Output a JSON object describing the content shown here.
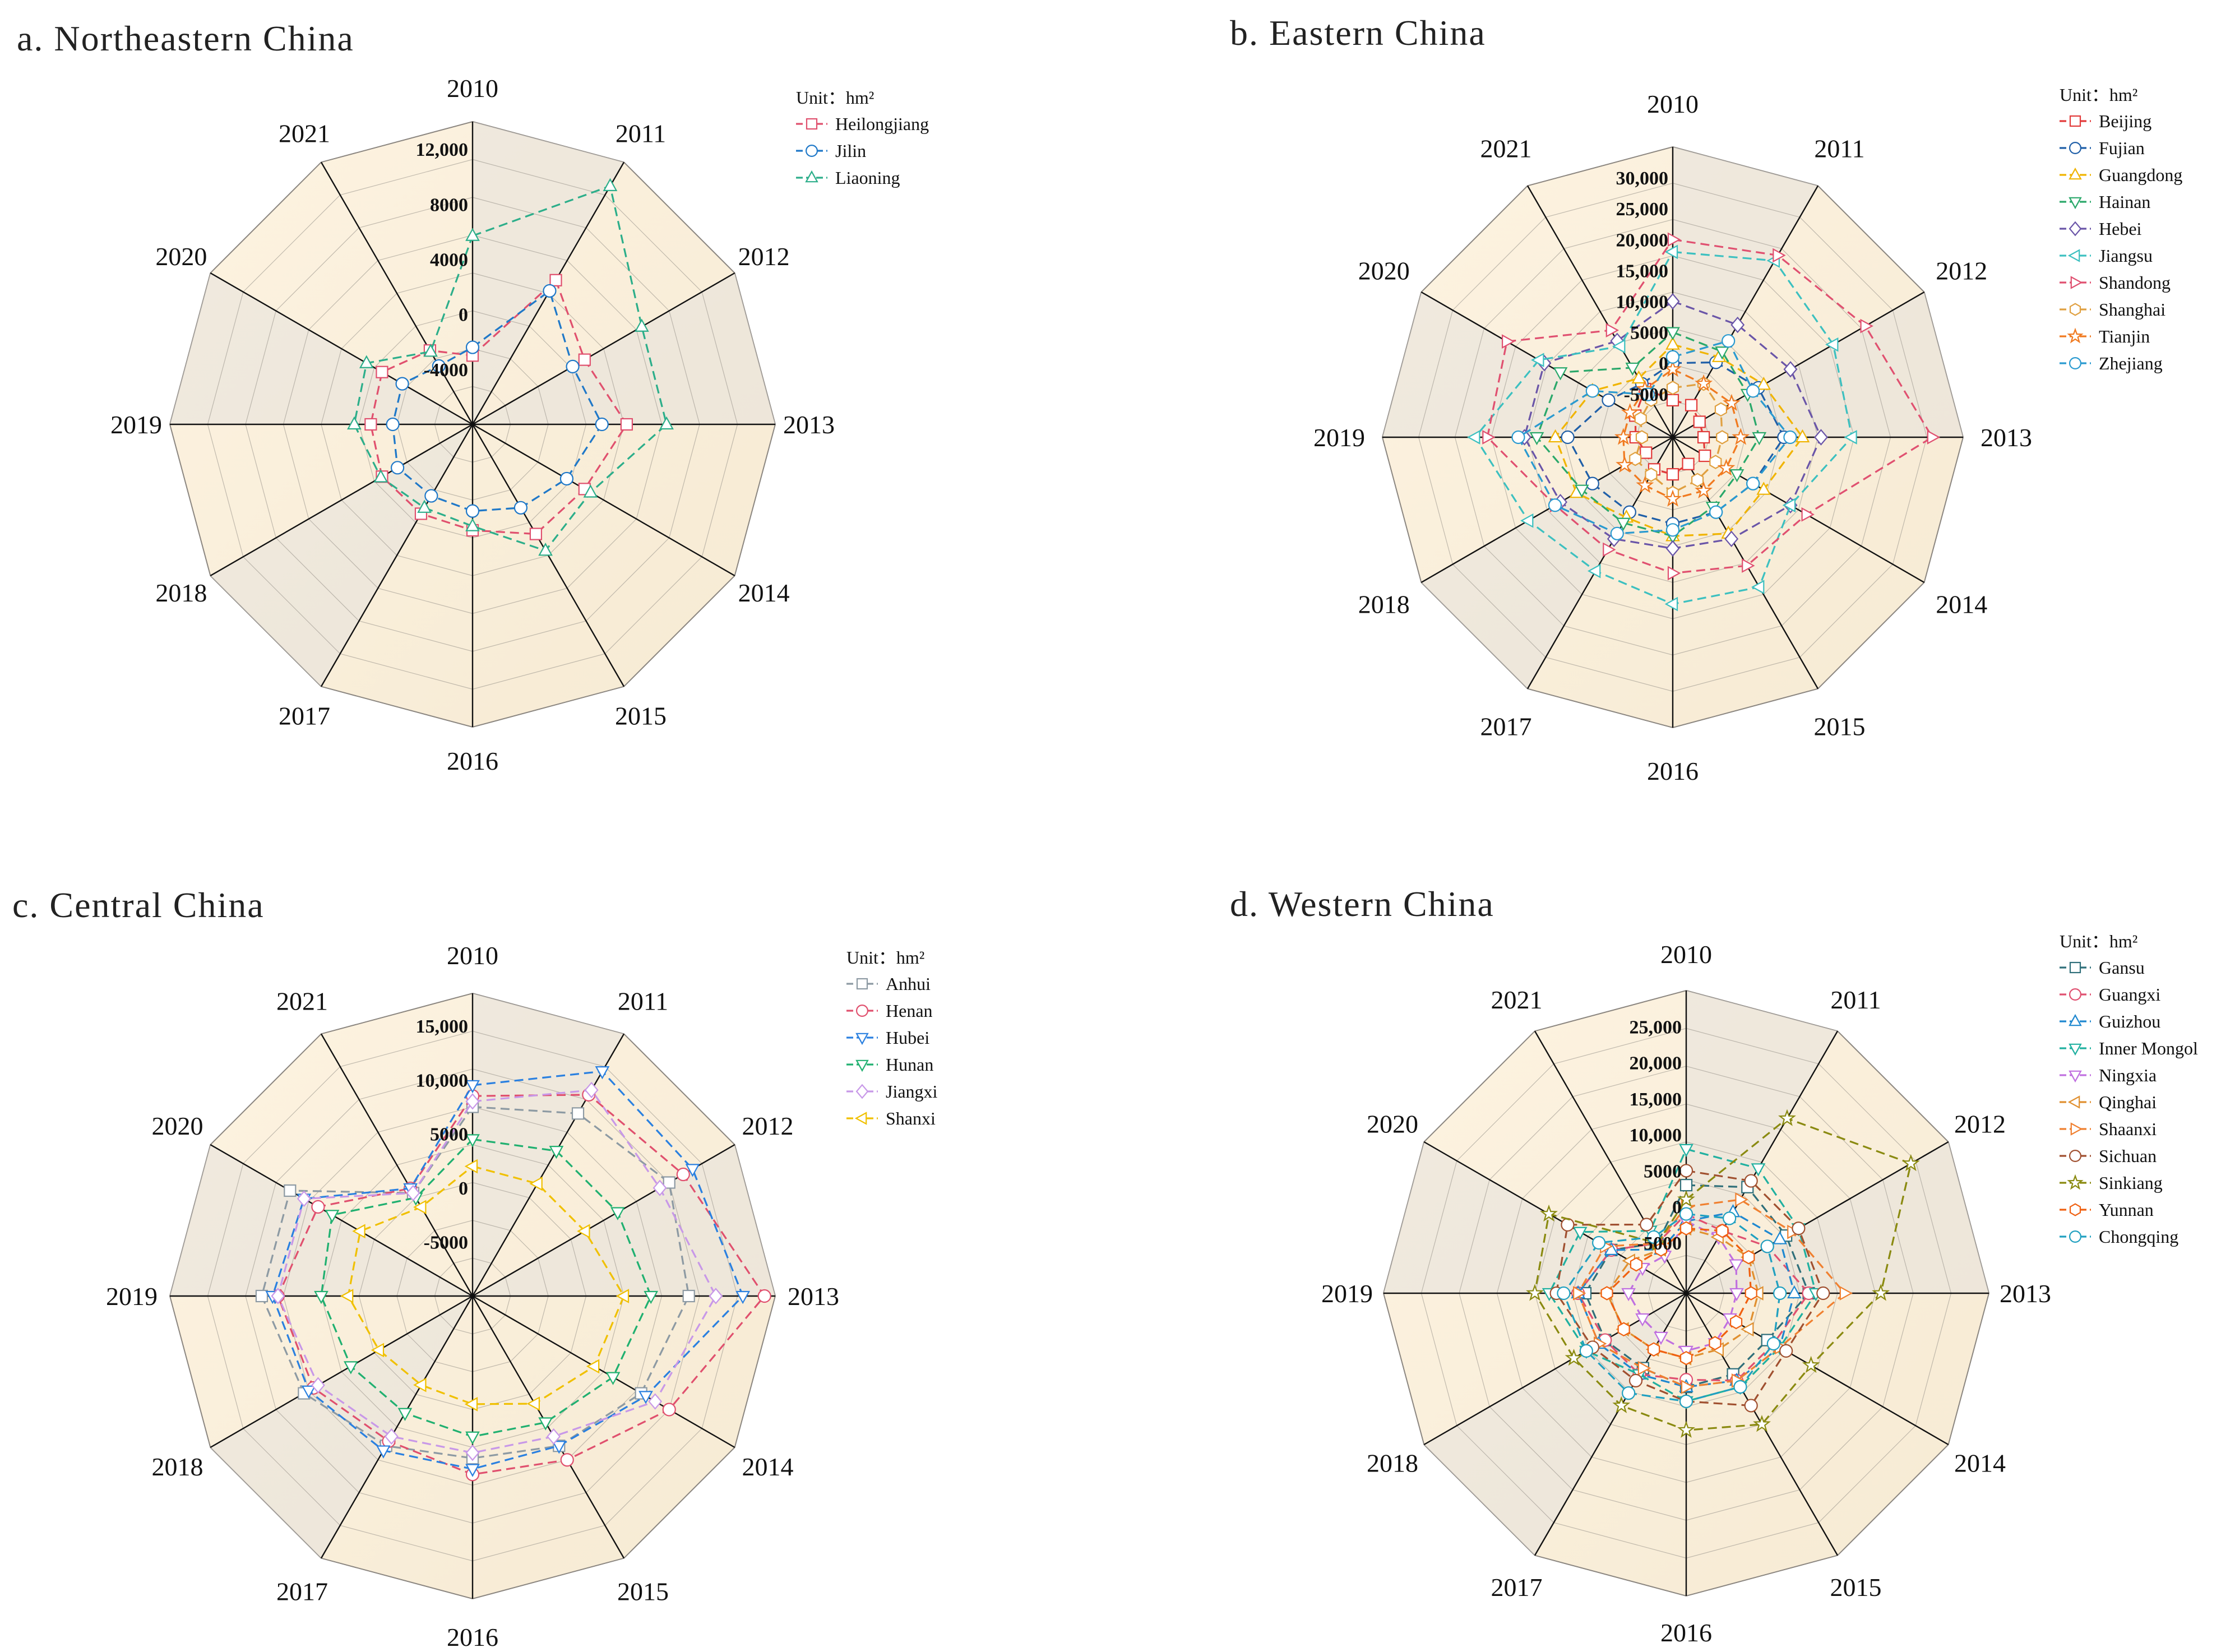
{
  "colors": {
    "background_light": "#fdf3e1",
    "background_shade": "#e6e2dc",
    "grid": "#9a958c",
    "axis": "#111111"
  },
  "chart_data": [
    {
      "type": "radar",
      "title": "a. Northeastern China",
      "unit": "Unit：hm²",
      "categories": [
        "2010",
        "2011",
        "2012",
        "2013",
        "2014",
        "2015",
        "2016",
        "2017",
        "2018",
        "2019",
        "2020",
        "2021"
      ],
      "rmin": -8000,
      "rmax": 14000,
      "ticks": [
        -4000,
        0,
        4000,
        8000,
        12000
      ],
      "tick_labels": [
        "-4000",
        "0",
        "4000",
        "8000",
        "12,000"
      ],
      "series": [
        {
          "name": "Heilongjiang",
          "color": "#e0506e",
          "marker": "square",
          "values": [
            -3000,
            4100,
            1400,
            3200,
            1400,
            1200,
            -300,
            -500,
            -400,
            -600,
            -400,
            -1800
          ]
        },
        {
          "name": "Jilin",
          "color": "#1f78c8",
          "marker": "circle",
          "values": [
            -2400,
            3200,
            400,
            1400,
            -100,
            -1000,
            -1700,
            -2000,
            -1700,
            -2200,
            -2100,
            -3100
          ]
        },
        {
          "name": "Liaoning",
          "color": "#2cae8a",
          "marker": "triangle",
          "values": [
            5700,
            12000,
            6200,
            6100,
            1900,
            2600,
            -600,
            -1000,
            -300,
            600,
            900,
            -1900
          ]
        }
      ]
    },
    {
      "type": "radar",
      "title": "b. Eastern China",
      "unit": "Unit：hm²",
      "categories": [
        "2010",
        "2011",
        "2012",
        "2013",
        "2014",
        "2015",
        "2016",
        "2017",
        "2018",
        "2019",
        "2020",
        "2021"
      ],
      "rmin": -12000,
      "rmax": 35000,
      "ticks": [
        -5000,
        0,
        5000,
        10000,
        15000,
        20000,
        25000,
        30000
      ],
      "tick_labels": [
        "-5000",
        "0",
        "5000",
        "10,000",
        "15,000",
        "20,000",
        "25,000",
        "30,000"
      ],
      "series": [
        {
          "name": "Beijing",
          "color": "#e23b3b",
          "marker": "square",
          "values": [
            -6000,
            -6000,
            -7000,
            -7000,
            -6000,
            -7000,
            -6000,
            -6000,
            -7000,
            -6000,
            -5000,
            -3000
          ]
        },
        {
          "name": "Fujian",
          "color": "#1f5fa8",
          "marker": "circle",
          "values": [
            0,
            2000,
            4000,
            6000,
            3000,
            2000,
            2000,
            2000,
            3000,
            5000,
            0,
            -2000
          ]
        },
        {
          "name": "Guangdong",
          "color": "#f0b400",
          "marker": "triangle",
          "values": [
            3000,
            3000,
            5000,
            9000,
            5000,
            6000,
            4000,
            3000,
            6000,
            7000,
            3000,
            -1000
          ]
        },
        {
          "name": "Hainan",
          "color": "#2aa86a",
          "marker": "tri-down",
          "values": [
            5000,
            4000,
            2000,
            2000,
            0,
            1000,
            4000,
            4000,
            5000,
            10000,
            9000,
            1000
          ]
        },
        {
          "name": "Hebei",
          "color": "#6a55a8",
          "marker": "diamond",
          "values": [
            10000,
            9000,
            10000,
            12000,
            10000,
            7000,
            6000,
            7000,
            9000,
            12000,
            12000,
            6000
          ]
        },
        {
          "name": "Jiangsu",
          "color": "#3cc0c0",
          "marker": "tri-left",
          "values": [
            18000,
            21000,
            18000,
            17000,
            10000,
            16000,
            15000,
            13000,
            15000,
            20000,
            13000,
            5000
          ]
        },
        {
          "name": "Shandong",
          "color": "#e05070",
          "marker": "tri-right",
          "values": [
            20000,
            22000,
            24000,
            30000,
            13000,
            12000,
            10000,
            9000,
            10000,
            18000,
            19000,
            8000
          ]
        },
        {
          "name": "Shanghai",
          "color": "#e0a040",
          "marker": "hexagon",
          "values": [
            -4000,
            -2000,
            -3000,
            -4000,
            -4000,
            -4000,
            -3000,
            -5000,
            -5000,
            -7000,
            -6000,
            -5000
          ]
        },
        {
          "name": "Tianjin",
          "color": "#f07a20",
          "marker": "star",
          "values": [
            -1000,
            -2000,
            -1000,
            -1000,
            -2000,
            -2000,
            -2000,
            -3000,
            -3000,
            -4000,
            -4000,
            -3000
          ]
        },
        {
          "name": "Zhejiang",
          "color": "#2a9ad0",
          "marker": "circle-small",
          "values": [
            1000,
            6000,
            3000,
            7000,
            3000,
            2000,
            3000,
            6000,
            10000,
            13000,
            3000,
            -4000
          ]
        }
      ]
    },
    {
      "type": "radar",
      "title": "c. Central China",
      "unit": "Unit：hm²",
      "categories": [
        "2010",
        "2011",
        "2012",
        "2013",
        "2014",
        "2015",
        "2016",
        "2017",
        "2018",
        "2019",
        "2020",
        "2021"
      ],
      "rmin": -10000,
      "rmax": 18000,
      "ticks": [
        -5000,
        0,
        5000,
        10000,
        15000
      ],
      "tick_labels": [
        "-5000",
        "0",
        "5000",
        "10,000",
        "15,000"
      ],
      "series": [
        {
          "name": "Anhui",
          "color": "#8d9aa3",
          "marker": "square",
          "values": [
            7500,
            9500,
            11000,
            10000,
            8000,
            6000,
            5000,
            6000,
            8000,
            9500,
            9500,
            1000
          ]
        },
        {
          "name": "Henan",
          "color": "#e0506e",
          "marker": "circle",
          "values": [
            8500,
            11500,
            12500,
            17000,
            11000,
            7500,
            6500,
            5500,
            7000,
            8000,
            6500,
            1500
          ]
        },
        {
          "name": "Hubei",
          "color": "#2a80e0",
          "marker": "tri-down",
          "values": [
            9500,
            14000,
            13500,
            15000,
            8500,
            6000,
            6000,
            6500,
            7500,
            8500,
            8000,
            1500
          ]
        },
        {
          "name": "Hunan",
          "color": "#20b070",
          "marker": "tri-down-open",
          "values": [
            4500,
            5500,
            5500,
            6500,
            5000,
            3500,
            3000,
            2500,
            3000,
            4000,
            5000,
            500
          ]
        },
        {
          "name": "Jiangxi",
          "color": "#c898e8",
          "marker": "diamond",
          "values": [
            8000,
            12000,
            10000,
            12500,
            9500,
            5000,
            4500,
            5000,
            6500,
            8000,
            8000,
            1000
          ]
        },
        {
          "name": "Shanxi",
          "color": "#f0c000",
          "marker": "tri-left",
          "values": [
            2000,
            2000,
            2000,
            4000,
            3000,
            1500,
            0,
            -500,
            0,
            1500,
            2000,
            -500
          ]
        }
      ]
    },
    {
      "type": "radar",
      "title": "d. Western China",
      "unit": "Unit：hm²",
      "categories": [
        "2010",
        "2011",
        "2012",
        "2013",
        "2014",
        "2015",
        "2016",
        "2017",
        "2018",
        "2019",
        "2020",
        "2021"
      ],
      "rmin": -12000,
      "rmax": 30000,
      "ticks": [
        -5000,
        0,
        5000,
        10000,
        15000,
        20000,
        25000
      ],
      "tick_labels": [
        "-5000",
        "0",
        "5000",
        "10,000",
        "15,000",
        "20,000",
        "25,000"
      ],
      "series": [
        {
          "name": "Gansu",
          "color": "#2f6f7a",
          "marker": "square",
          "values": [
            3000,
            5000,
            4000,
            5000,
            1000,
            1000,
            1000,
            0,
            1000,
            2000,
            0,
            -4000
          ]
        },
        {
          "name": "Guangxi",
          "color": "#e05070",
          "marker": "circle",
          "values": [
            -1000,
            -2000,
            1000,
            5000,
            2000,
            2000,
            0,
            1000,
            1000,
            3000,
            0,
            -4000
          ]
        },
        {
          "name": "Guizhou",
          "color": "#1f88d0",
          "marker": "triangle",
          "values": [
            -2000,
            1000,
            3000,
            3000,
            3000,
            2000,
            1000,
            1000,
            2000,
            3000,
            0,
            -5000
          ]
        },
        {
          "name": "Inner Mongol",
          "color": "#20b0a0",
          "marker": "tri-down",
          "values": [
            8000,
            8000,
            6000,
            6000,
            3000,
            3000,
            3000,
            1000,
            4000,
            7000,
            5000,
            -2000
          ]
        },
        {
          "name": "Ningxia",
          "color": "#c070e0",
          "marker": "tri-down",
          "values": [
            -2000,
            -3000,
            -4000,
            -5000,
            -5000,
            -4000,
            -4000,
            -5000,
            -5000,
            -4000,
            -5000,
            -6000
          ]
        },
        {
          "name": "Qinghai",
          "color": "#e09030",
          "marker": "tri-left",
          "values": [
            -3000,
            -3000,
            -2000,
            -2000,
            -2000,
            -3000,
            -3000,
            -3000,
            -2000,
            -1000,
            -3000,
            -5000
          ]
        },
        {
          "name": "Shaanxi",
          "color": "#f08030",
          "marker": "tri-right",
          "values": [
            0,
            3000,
            5000,
            10000,
            3000,
            2000,
            1000,
            0,
            2000,
            3000,
            1000,
            -4000
          ]
        },
        {
          "name": "Sichuan",
          "color": "#a05030",
          "marker": "circle",
          "values": [
            5000,
            6000,
            6000,
            7000,
            4000,
            6000,
            3000,
            2000,
            3000,
            6000,
            7000,
            -1000
          ]
        },
        {
          "name": "Sinkiang",
          "color": "#8a8a10",
          "marker": "star",
          "values": [
            1000,
            16000,
            24000,
            15000,
            8000,
            9000,
            7000,
            6000,
            6000,
            9000,
            10000,
            -4000
          ]
        },
        {
          "name": "Yunnan",
          "color": "#f06010",
          "marker": "hexagon",
          "values": [
            -3000,
            -2000,
            -2000,
            -3000,
            -4000,
            -4000,
            -3000,
            -3000,
            -2000,
            -1000,
            -4000,
            -5000
          ]
        },
        {
          "name": "Chongqing",
          "color": "#20a0c0",
          "marker": "circle-dot",
          "values": [
            -1000,
            0,
            1000,
            1000,
            2000,
            3000,
            3000,
            4000,
            4000,
            5000,
            2000,
            -3000
          ]
        }
      ]
    }
  ]
}
